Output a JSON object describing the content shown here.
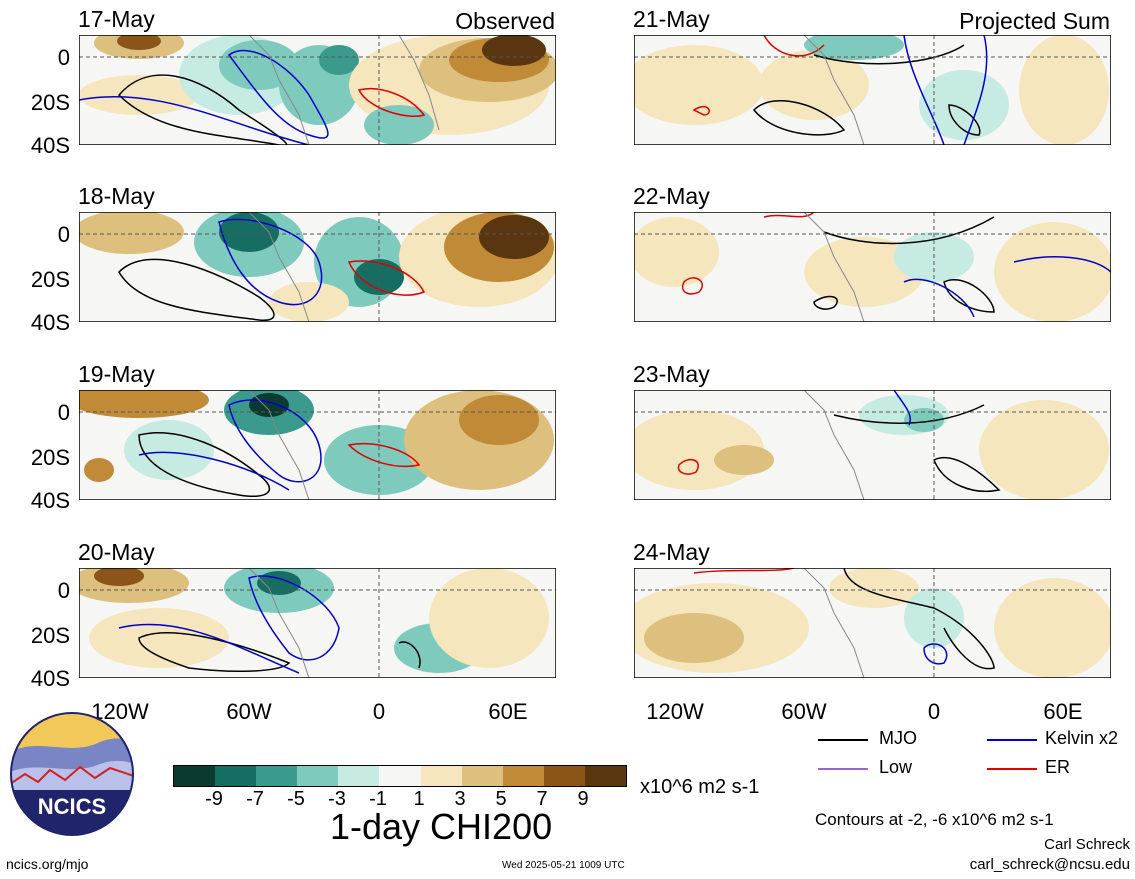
{
  "panels": [
    {
      "date": "17-May",
      "label": "Observed",
      "column": "left",
      "row": 0
    },
    {
      "date": "18-May",
      "label": "",
      "column": "left",
      "row": 1
    },
    {
      "date": "19-May",
      "label": "",
      "column": "left",
      "row": 2
    },
    {
      "date": "20-May",
      "label": "",
      "column": "left",
      "row": 3
    },
    {
      "date": "21-May",
      "label": "Projected Sum",
      "column": "right",
      "row": 0
    },
    {
      "date": "22-May",
      "label": "",
      "column": "right",
      "row": 1
    },
    {
      "date": "23-May",
      "label": "",
      "column": "right",
      "row": 2
    },
    {
      "date": "24-May",
      "label": "",
      "column": "right",
      "row": 3
    }
  ],
  "y_ticks": [
    "0",
    "20S",
    "40S"
  ],
  "x_ticks": [
    "120W",
    "60W",
    "0",
    "60E"
  ],
  "colorbar": {
    "ticks": [
      "-9",
      "-7",
      "-5",
      "-3",
      "-1",
      "1",
      "3",
      "5",
      "7",
      "9"
    ],
    "units": "x10^6 m2 s-1",
    "colors": [
      "#0a3a30",
      "#166e63",
      "#3a9a8c",
      "#7ecabd",
      "#c6ebe2",
      "#f6f6f4",
      "#f5e6bd",
      "#ddbf7e",
      "#c08a37",
      "#8c5518",
      "#593510"
    ]
  },
  "title": "1-day CHI200",
  "legend": [
    {
      "label": "MJO",
      "color": "#000000"
    },
    {
      "label": "Kelvin x2",
      "color": "#0000cc"
    },
    {
      "label": "Low",
      "color": "#9966cc"
    },
    {
      "label": "ER",
      "color": "#dd0000"
    }
  ],
  "contour_note": "Contours at -2, -6 x10^6 m2 s-1",
  "author": "Carl Schreck",
  "email": "carl_schreck@ncsu.edu",
  "website": "ncics.org/mjo",
  "timestamp": "Wed 2025-05-21 1009 UTC",
  "logo_text": "NCICS"
}
